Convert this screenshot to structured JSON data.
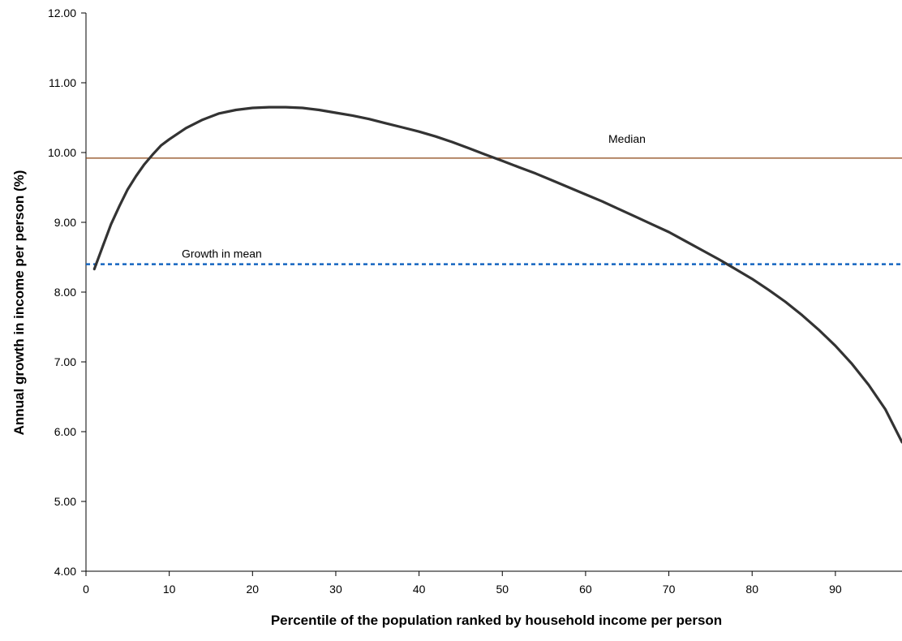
{
  "chart_data": {
    "type": "line",
    "title": "",
    "xlabel": "Percentile of the population ranked by household income per person",
    "ylabel": "Annual growth in income per person (%)",
    "xlim": [
      0,
      98
    ],
    "ylim": [
      4,
      12
    ],
    "x_ticks": [
      0,
      10,
      20,
      30,
      40,
      50,
      60,
      70,
      80,
      90
    ],
    "x_tick_labels": [
      "0",
      "10",
      "20",
      "30",
      "40",
      "50",
      "60",
      "70",
      "80",
      "90"
    ],
    "y_ticks": [
      4,
      5,
      6,
      7,
      8,
      9,
      10,
      11,
      12
    ],
    "y_tick_labels": [
      "4.00",
      "5.00",
      "6.00",
      "7.00",
      "8.00",
      "9.00",
      "10.00",
      "11.00",
      "12.00"
    ],
    "grid": false,
    "legend": "none",
    "series": [
      {
        "color": "#333333",
        "x": [
          1,
          2,
          3,
          4,
          5,
          6,
          7,
          8,
          9,
          10,
          12,
          14,
          16,
          18,
          20,
          22,
          24,
          26,
          28,
          30,
          32,
          34,
          36,
          38,
          40,
          42,
          44,
          46,
          48,
          50,
          52,
          54,
          56,
          58,
          60,
          62,
          64,
          66,
          68,
          70,
          72,
          74,
          76,
          78,
          80,
          82,
          84,
          86,
          88,
          90,
          92,
          94,
          96,
          98
        ],
        "y": [
          8.33,
          8.65,
          8.97,
          9.23,
          9.47,
          9.66,
          9.83,
          9.97,
          10.1,
          10.19,
          10.35,
          10.47,
          10.56,
          10.61,
          10.64,
          10.65,
          10.65,
          10.64,
          10.61,
          10.57,
          10.53,
          10.48,
          10.42,
          10.36,
          10.3,
          10.23,
          10.15,
          10.06,
          9.97,
          9.88,
          9.79,
          9.7,
          9.6,
          9.5,
          9.4,
          9.3,
          9.19,
          9.08,
          8.97,
          8.86,
          8.73,
          8.6,
          8.47,
          8.33,
          8.19,
          8.03,
          7.86,
          7.67,
          7.46,
          7.23,
          6.97,
          6.67,
          6.32,
          5.85
        ]
      }
    ],
    "reference_lines": [
      {
        "label": "Median",
        "y": 9.92,
        "color": "#8b4513",
        "style": "solid"
      },
      {
        "label": "Growth in mean",
        "y": 8.4,
        "color": "#1565c0",
        "style": "dotted"
      }
    ]
  }
}
